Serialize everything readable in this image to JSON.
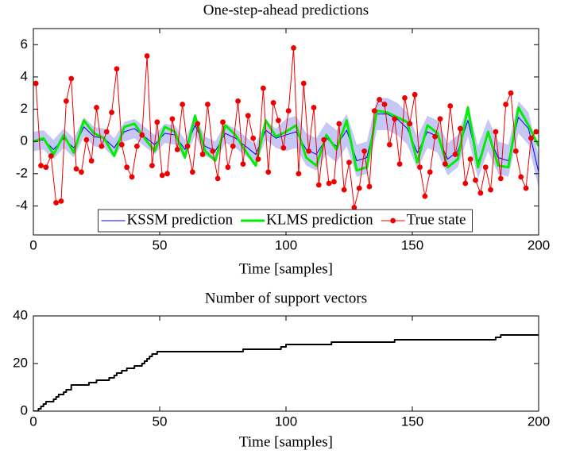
{
  "chart_data": [
    {
      "type": "line",
      "title": "One-step-ahead predictions",
      "x_label": "Time [samples]",
      "xlim": [
        0,
        200
      ],
      "xticks": [
        0,
        50,
        100,
        150,
        200
      ],
      "ylim": [
        -5.8,
        7
      ],
      "yticks": [
        -4,
        -2,
        0,
        2,
        4,
        6
      ],
      "legend": "lower center",
      "band": {
        "color": "#c5c8f5",
        "x": [
          0,
          4,
          8,
          12,
          16,
          20,
          24,
          28,
          32,
          36,
          40,
          44,
          48,
          52,
          56,
          60,
          64,
          68,
          72,
          76,
          80,
          84,
          88,
          92,
          96,
          100,
          104,
          108,
          112,
          116,
          120,
          124,
          128,
          132,
          136,
          140,
          144,
          148,
          152,
          156,
          160,
          164,
          168,
          172,
          176,
          180,
          184,
          188,
          192,
          196,
          200
        ],
        "lower": [
          -0.6,
          -0.5,
          -1.1,
          -0.4,
          -1.0,
          0.3,
          -0.3,
          -0.4,
          -1.0,
          0.0,
          0.2,
          -0.3,
          -0.8,
          -0.1,
          -0.2,
          -1.1,
          0.4,
          -0.9,
          -1.2,
          -0.1,
          -0.4,
          -0.9,
          -1.4,
          0.1,
          -0.4,
          -0.6,
          -0.4,
          -1.5,
          -1.8,
          -0.8,
          -1.3,
          -0.3,
          -2.2,
          -2.0,
          0.7,
          0.7,
          0.4,
          -0.2,
          -1.7,
          -0.4,
          -0.7,
          -2.1,
          -1.6,
          0.3,
          -2.3,
          -0.6,
          -2.0,
          -2.2,
          0.5,
          -0.2,
          -2.9
        ],
        "upper": [
          0.6,
          0.7,
          0.1,
          0.8,
          0.2,
          1.5,
          0.9,
          0.8,
          0.2,
          1.2,
          1.4,
          0.9,
          0.4,
          1.1,
          1.0,
          0.1,
          1.6,
          0.3,
          0.0,
          1.1,
          0.8,
          0.3,
          -0.2,
          1.3,
          0.8,
          1.4,
          1.6,
          0.5,
          0.2,
          1.2,
          0.7,
          1.7,
          -0.2,
          0.0,
          2.7,
          2.7,
          2.4,
          1.8,
          0.3,
          1.6,
          1.3,
          -0.1,
          0.4,
          2.3,
          -0.3,
          1.4,
          0.0,
          -0.2,
          2.5,
          1.8,
          -0.9
        ]
      },
      "series": [
        {
          "name": "KSSM prediction",
          "color": "#0000ff",
          "width": 1,
          "x": [
            0,
            4,
            8,
            12,
            16,
            20,
            24,
            28,
            32,
            36,
            40,
            44,
            48,
            52,
            56,
            60,
            64,
            68,
            72,
            76,
            80,
            84,
            88,
            92,
            96,
            100,
            104,
            108,
            112,
            116,
            120,
            124,
            128,
            132,
            136,
            140,
            144,
            148,
            152,
            156,
            160,
            164,
            168,
            172,
            176,
            180,
            184,
            188,
            192,
            196,
            200
          ],
          "values": [
            0,
            0.1,
            -0.5,
            0.2,
            -0.4,
            0.9,
            0.3,
            0.2,
            -0.4,
            0.6,
            0.8,
            0.3,
            -0.2,
            0.5,
            0.4,
            -0.5,
            1.0,
            -0.3,
            -0.6,
            0.5,
            0.2,
            -0.3,
            -0.8,
            0.7,
            0.2,
            0.4,
            0.6,
            -0.5,
            -0.8,
            0.2,
            -0.3,
            0.7,
            -1.2,
            -1.0,
            1.7,
            1.7,
            1.4,
            0.8,
            -0.7,
            0.6,
            0.3,
            -1.1,
            -0.6,
            1.3,
            -1.3,
            0.4,
            -1.0,
            -1.2,
            1.5,
            0.8,
            -1.9
          ]
        },
        {
          "name": "KLMS prediction",
          "color": "#00ee00",
          "width": 3,
          "x": [
            0,
            4,
            8,
            12,
            16,
            20,
            24,
            28,
            32,
            36,
            40,
            44,
            48,
            52,
            56,
            60,
            64,
            68,
            72,
            76,
            80,
            84,
            88,
            92,
            96,
            100,
            104,
            108,
            112,
            116,
            120,
            124,
            128,
            132,
            136,
            140,
            144,
            148,
            152,
            156,
            160,
            164,
            168,
            172,
            176,
            180,
            184,
            188,
            192,
            196,
            200
          ],
          "values": [
            0,
            0.2,
            -0.8,
            0.4,
            -0.7,
            1.3,
            0.5,
            0.2,
            -0.9,
            0.9,
            1.1,
            0.2,
            -0.6,
            0.9,
            0.6,
            -1.0,
            1.6,
            -0.6,
            -1.2,
            1.0,
            0.4,
            -0.6,
            -1.5,
            1.3,
            0.3,
            0.6,
            1.0,
            -1.0,
            -1.5,
            0.4,
            -0.5,
            1.3,
            -1.8,
            -1.6,
            1.9,
            1.8,
            1.5,
            1.2,
            -1.3,
            1.0,
            0.5,
            -1.6,
            -1.1,
            2.1,
            -1.6,
            0.6,
            -1.5,
            -1.6,
            2.1,
            1.0,
            -0.3
          ]
        },
        {
          "name": "True state",
          "color": "#ee0000",
          "width": 1,
          "marker": "o",
          "x": [
            1,
            3,
            5,
            7,
            9,
            11,
            13,
            15,
            17,
            19,
            21,
            23,
            25,
            27,
            29,
            31,
            33,
            35,
            37,
            39,
            41,
            43,
            45,
            47,
            49,
            51,
            53,
            55,
            57,
            59,
            61,
            63,
            65,
            67,
            69,
            71,
            73,
            75,
            77,
            79,
            81,
            83,
            85,
            87,
            89,
            91,
            93,
            95,
            97,
            99,
            101,
            103,
            105,
            107,
            109,
            111,
            113,
            115,
            117,
            119,
            121,
            123,
            125,
            127,
            129,
            131,
            133,
            135,
            137,
            139,
            141,
            143,
            145,
            147,
            149,
            151,
            153,
            155,
            157,
            159,
            161,
            163,
            165,
            167,
            169,
            171,
            173,
            175,
            177,
            179,
            181,
            183,
            185,
            187,
            189,
            191,
            193,
            195,
            197,
            199
          ],
          "values": [
            3.6,
            -1.5,
            -1.6,
            -0.9,
            -3.8,
            -3.7,
            2.5,
            3.9,
            -1.7,
            -1.9,
            0.1,
            -1.2,
            2.1,
            -0.3,
            0.6,
            1.8,
            4.5,
            -0.2,
            -1.6,
            -2.2,
            -0.3,
            0.4,
            5.3,
            -1.5,
            1.2,
            -2.1,
            -2.0,
            1.4,
            -0.5,
            2.3,
            -0.3,
            -1.9,
            1.1,
            -0.8,
            2.3,
            -0.6,
            -2.3,
            1.2,
            -1.6,
            -0.3,
            2.5,
            -1.4,
            1.6,
            0.2,
            -1.1,
            3.3,
            -1.9,
            2.4,
            1.3,
            -0.4,
            1.9,
            5.8,
            -2.0,
            3.6,
            -0.6,
            2.1,
            -2.7,
            0.1,
            -2.6,
            -2.5,
            1.1,
            -3.0,
            -1.3,
            -4.1,
            -2.9,
            -0.6,
            -2.8,
            1.9,
            2.6,
            2.3,
            -0.2,
            1.4,
            -1.4,
            2.7,
            1.1,
            2.9,
            -1.6,
            -3.4,
            -1.9,
            0.3,
            1.4,
            -1.4,
            2.2,
            -0.8,
            0.8,
            -2.6,
            -1.1,
            -2.4,
            -3.2,
            -1.6,
            -3.0,
            0.6,
            -2.3,
            2.3,
            3.0,
            -0.6,
            -2.2,
            -2.9,
            0.2,
            0.6
          ]
        }
      ]
    },
    {
      "type": "step",
      "title": "Number of support vectors",
      "x_label": "Time [samples]",
      "xlim": [
        0,
        200
      ],
      "xticks": [
        0,
        50,
        100,
        150,
        200
      ],
      "ylim": [
        0,
        40
      ],
      "yticks": [
        0,
        20,
        40
      ],
      "series": [
        {
          "color": "#000000",
          "width": 2,
          "x": [
            0,
            2,
            3,
            4,
            5,
            8,
            9,
            10,
            12,
            13,
            15,
            22,
            25,
            30,
            32,
            33,
            35,
            37,
            40,
            43,
            44,
            45,
            46,
            47,
            49,
            83,
            98,
            100,
            118,
            143,
            183,
            185,
            200
          ],
          "values": [
            0,
            1,
            2,
            3,
            4,
            5,
            6,
            7,
            8,
            9,
            11,
            12,
            13,
            14,
            15,
            16,
            17,
            18,
            19,
            20,
            21,
            22,
            23,
            24,
            25,
            26,
            27,
            28,
            29,
            30,
            31,
            32,
            32
          ]
        }
      ]
    }
  ]
}
